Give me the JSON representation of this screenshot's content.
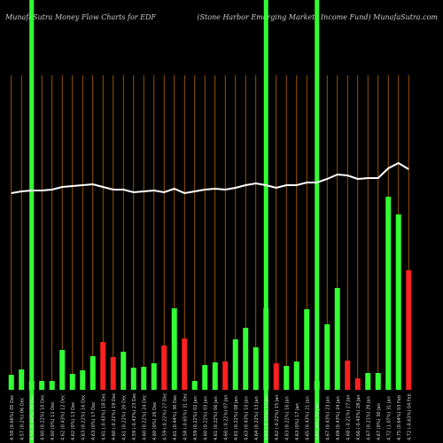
{
  "chart_data": {
    "type": "bar",
    "title": "MunafaSutra  Money Flow  Charts for EDF",
    "subtitle": "(Stone   Harbor   Emerging Markets Income   Fund) MunafaSutra.com",
    "categories": [
      "4.58 (0.66%) 05 Dec",
      "4.57 (0.2%) 06 Dec",
      "4.59 (0.44%) 09 Dec",
      "4.60 (0.22%) 10 Dec",
      "4.60 (0%) 11 Dec",
      "4.62 (0.43%) 12 Dec",
      "4.62 (0%) 13 Dec",
      "4.63 (0.22%) 16 Dec",
      "4.63 (0%) 17 Dec",
      "4.61 (-0.43%) 18 Dec",
      "4.60 (-0.22%) 19 Dec",
      "4.61 (0.22%) 20 Dec",
      "4.59 (-0.43%) 23 Dec",
      "4.60 (0.22%) 24 Dec",
      "4.60 (0%) 26 Dec",
      "4.59 (-0.22%) 27 Dec",
      "4.61 (0.44%) 30 Dec",
      "4.58 (-0.65%) 31 Dec",
      "4.59 (0.22%) 02 Jan",
      "4.60 (0.22%) 03 Jan",
      "4.61 (0.22%) 06 Jan",
      "4.60 (-0.22%) 07 Jan",
      "4.61 (0.22%) 08 Jan",
      "4.63 (0.43%) 10 Jan",
      "4.64 (0.22%) 13 Jan",
      "4.63 (-0.22%) 14 Jan",
      "4.62 (-0.22%) 15 Jan",
      "4.63 (0.22%) 16 Jan",
      "4.63 (0%) 17 Jan",
      "4.65 (0.43%) 21 Jan",
      "4.65 (0%) 22 Jan",
      "4.67 (0.43%) 23 Jan",
      "4.69 (0.43%) 24 Jan",
      "4.68 (-0.21%) 27 Jan",
      "4.66 (-0.43%) 28 Jan",
      "4.67 (0.21%) 29 Jan",
      "4.67 (0%) 30 Jan",
      "4.72 (1.07%) 31 Jan",
      "4.75 (0.64%) 03 Feb",
      "4.72 (-0.63%) 04 Feb"
    ],
    "values": [
      17,
      23,
      10,
      10,
      10,
      45,
      18,
      22,
      38,
      54,
      37,
      43,
      25,
      26,
      30,
      50,
      92,
      58,
      10,
      28,
      31,
      32,
      57,
      70,
      48,
      92,
      30,
      27,
      32,
      91,
      10,
      74,
      115,
      33,
      13,
      19,
      19,
      218,
      198,
      135
    ],
    "bar_colors": [
      "#33ff33",
      "#33ff33",
      "#33ff33",
      "#33ff33",
      "#33ff33",
      "#33ff33",
      "#33ff33",
      "#33ff33",
      "#33ff33",
      "#ff2020",
      "#ff2020",
      "#33ff33",
      "#33ff33",
      "#33ff33",
      "#33ff33",
      "#ff2020",
      "#33ff33",
      "#ff2020",
      "#33ff33",
      "#33ff33",
      "#33ff33",
      "#ff2020",
      "#33ff33",
      "#33ff33",
      "#33ff33",
      "#33ff33",
      "#ff2020",
      "#33ff33",
      "#33ff33",
      "#33ff33",
      "#33ff33",
      "#33ff33",
      "#33ff33",
      "#ff2020",
      "#ff2020",
      "#33ff33",
      "#33ff33",
      "#33ff33",
      "#33ff33",
      "#ff2020"
    ],
    "line": {
      "color": "#ffffff",
      "values": [
        222,
        224,
        225,
        225,
        226,
        229,
        230,
        231,
        232,
        229,
        226,
        226,
        223,
        224,
        225,
        223,
        227,
        222,
        224,
        226,
        227,
        226,
        228,
        231,
        233,
        231,
        228,
        231,
        231,
        234,
        234,
        238,
        243,
        242,
        238,
        239,
        239,
        250,
        256,
        249
      ]
    },
    "highlight_indices": [
      2,
      25,
      30
    ],
    "highlight_color": "#33ff33",
    "grid_color": "#b86a00",
    "ylim": [
      0,
      440
    ]
  }
}
